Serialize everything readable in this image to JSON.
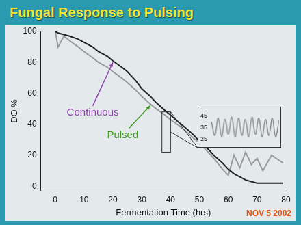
{
  "chart_data": [
    {
      "type": "line",
      "title": "Fungal Response to Pulsing",
      "x_label": "Fermentation Time (hrs)",
      "y_label": "DO %",
      "x": [
        0,
        1,
        3,
        5,
        8,
        10,
        13,
        15,
        18,
        20,
        23,
        25,
        28,
        30,
        33,
        35,
        38,
        40,
        43,
        45,
        48,
        50,
        53,
        55,
        58,
        60,
        62,
        64,
        66,
        68,
        70,
        72,
        75,
        79
      ],
      "series": [
        {
          "name": "Continuous",
          "color": "#222222",
          "values": [
            100,
            99,
            98,
            97,
            95,
            93,
            90,
            87,
            84,
            81,
            77,
            74,
            68,
            63,
            58,
            54,
            49,
            46,
            41,
            38,
            33,
            29,
            24,
            20,
            15,
            11,
            8,
            6,
            4,
            3,
            2,
            2,
            2,
            2
          ]
        },
        {
          "name": "Pulsed",
          "color": "#9a9a9a",
          "values": [
            100,
            90,
            97,
            94,
            90,
            87,
            83,
            80,
            77,
            74,
            70,
            67,
            62,
            58,
            53,
            50,
            46,
            43,
            39,
            36,
            31,
            28,
            22,
            18,
            11,
            7,
            20,
            12,
            22,
            14,
            18,
            10,
            20,
            15
          ]
        }
      ],
      "xlim": [
        -5,
        80
      ],
      "xticks": [
        0,
        10,
        20,
        30,
        40,
        50,
        60,
        70,
        80
      ],
      "ylim": [
        -3,
        100
      ],
      "yticks": [
        0,
        20,
        40,
        60,
        80,
        100
      ],
      "grid": false,
      "annotations": [
        "NOV 5 2002"
      ]
    },
    {
      "type": "line",
      "x": [
        37,
        37.15,
        37.3,
        37.45,
        37.6,
        37.75,
        37.9,
        38.05,
        38.2,
        38.35,
        38.5,
        38.65,
        38.8,
        38.95,
        39.1,
        39.25,
        39.4,
        39.55,
        39.7,
        39.85,
        40
      ],
      "series": [
        {
          "color": "#8a8a8a",
          "values": [
            40,
            28,
            43,
            27,
            42,
            29,
            44,
            27,
            43,
            28,
            42,
            27,
            44,
            29,
            43,
            27,
            42,
            28,
            43,
            27,
            41
          ]
        }
      ],
      "xlim": [
        37,
        40
      ],
      "ylim": [
        22,
        48
      ],
      "yticks": [
        25,
        35,
        45
      ],
      "grid": false,
      "tick_labels": "y"
    }
  ]
}
